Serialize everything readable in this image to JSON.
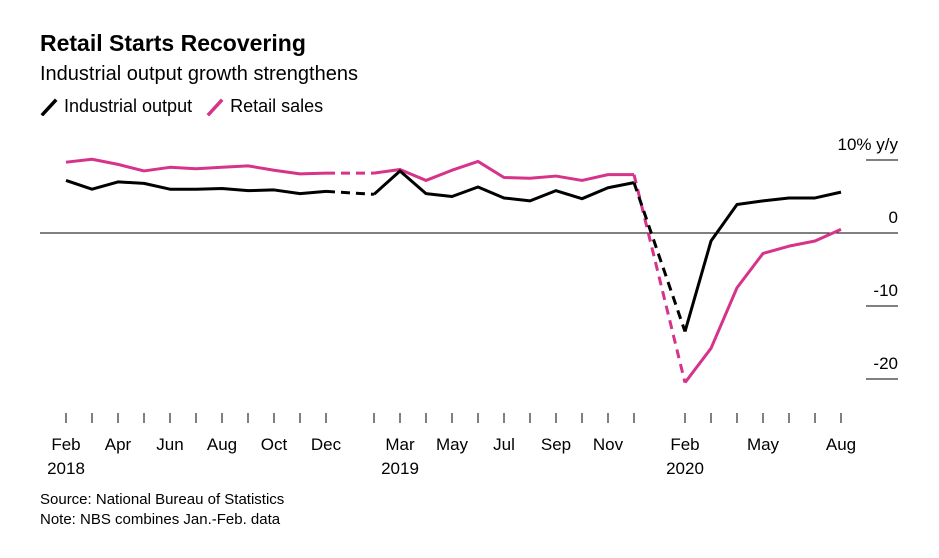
{
  "header": {
    "title": "Retail Starts Recovering",
    "subtitle": "Industrial output growth strengthens"
  },
  "legend": [
    {
      "label": "Industrial output",
      "color": "#000000"
    },
    {
      "label": "Retail sales",
      "color": "#d6338a"
    }
  ],
  "footer": {
    "source": "Source: National Bureau of Statistics",
    "note": "Note: NBS combines Jan.-Feb. data"
  },
  "chart_data": {
    "type": "line",
    "x_labels": [
      "Feb",
      "Apr",
      "Jun",
      "Aug",
      "Oct",
      "Dec",
      "Mar",
      "May",
      "Jul",
      "Sep",
      "Nov",
      "Feb",
      "May",
      "Aug"
    ],
    "year_labels": [
      "2018",
      "2019",
      "2020"
    ],
    "y_tick_labels": [
      "10% y/y",
      "0",
      "-10",
      "-20"
    ],
    "y_ticks": [
      10,
      0,
      -10,
      -20
    ],
    "ylim": [
      -23,
      12
    ],
    "series": [
      {
        "name": "Industrial output",
        "color": "#000000",
        "segments": [
          {
            "style": "solid",
            "points": [
              [
                "2018-02",
                7.2
              ],
              [
                "2018-03",
                6.0
              ],
              [
                "2018-04",
                7.0
              ],
              [
                "2018-05",
                6.8
              ],
              [
                "2018-06",
                6.0
              ],
              [
                "2018-07",
                6.0
              ],
              [
                "2018-08",
                6.1
              ],
              [
                "2018-09",
                5.8
              ],
              [
                "2018-10",
                5.9
              ],
              [
                "2018-11",
                5.4
              ],
              [
                "2018-12",
                5.7
              ]
            ]
          },
          {
            "style": "dashed",
            "points": [
              [
                "2018-12",
                5.7
              ],
              [
                "2019-02",
                5.3
              ]
            ]
          },
          {
            "style": "solid",
            "points": [
              [
                "2019-02",
                5.3
              ],
              [
                "2019-03",
                8.5
              ],
              [
                "2019-04",
                5.4
              ],
              [
                "2019-05",
                5.0
              ],
              [
                "2019-06",
                6.3
              ],
              [
                "2019-07",
                4.8
              ],
              [
                "2019-08",
                4.4
              ],
              [
                "2019-09",
                5.8
              ],
              [
                "2019-10",
                4.7
              ],
              [
                "2019-11",
                6.2
              ],
              [
                "2019-12",
                6.9
              ]
            ]
          },
          {
            "style": "dashed",
            "points": [
              [
                "2019-12",
                6.9
              ],
              [
                "2020-02",
                -13.5
              ]
            ]
          },
          {
            "style": "solid",
            "points": [
              [
                "2020-02",
                -13.5
              ],
              [
                "2020-03",
                -1.1
              ],
              [
                "2020-04",
                3.9
              ],
              [
                "2020-05",
                4.4
              ],
              [
                "2020-06",
                4.8
              ],
              [
                "2020-07",
                4.8
              ],
              [
                "2020-08",
                5.6
              ]
            ]
          }
        ]
      },
      {
        "name": "Retail sales",
        "color": "#d6338a",
        "segments": [
          {
            "style": "solid",
            "points": [
              [
                "2018-02",
                9.7
              ],
              [
                "2018-03",
                10.1
              ],
              [
                "2018-04",
                9.4
              ],
              [
                "2018-05",
                8.5
              ],
              [
                "2018-06",
                9.0
              ],
              [
                "2018-07",
                8.8
              ],
              [
                "2018-08",
                9.0
              ],
              [
                "2018-09",
                9.2
              ],
              [
                "2018-10",
                8.6
              ],
              [
                "2018-11",
                8.1
              ],
              [
                "2018-12",
                8.2
              ]
            ]
          },
          {
            "style": "dashed",
            "points": [
              [
                "2018-12",
                8.2
              ],
              [
                "2019-02",
                8.2
              ]
            ]
          },
          {
            "style": "solid",
            "points": [
              [
                "2019-02",
                8.2
              ],
              [
                "2019-03",
                8.7
              ],
              [
                "2019-04",
                7.2
              ],
              [
                "2019-05",
                8.6
              ],
              [
                "2019-06",
                9.8
              ],
              [
                "2019-07",
                7.6
              ],
              [
                "2019-08",
                7.5
              ],
              [
                "2019-09",
                7.8
              ],
              [
                "2019-10",
                7.2
              ],
              [
                "2019-11",
                8.0
              ],
              [
                "2019-12",
                8.0
              ]
            ]
          },
          {
            "style": "dashed",
            "points": [
              [
                "2019-12",
                8.0
              ],
              [
                "2020-02",
                -20.5
              ]
            ]
          },
          {
            "style": "solid",
            "points": [
              [
                "2020-02",
                -20.5
              ],
              [
                "2020-03",
                -15.8
              ],
              [
                "2020-04",
                -7.5
              ],
              [
                "2020-05",
                -2.8
              ],
              [
                "2020-06",
                -1.8
              ],
              [
                "2020-07",
                -1.1
              ],
              [
                "2020-08",
                0.5
              ]
            ]
          }
        ]
      }
    ]
  }
}
